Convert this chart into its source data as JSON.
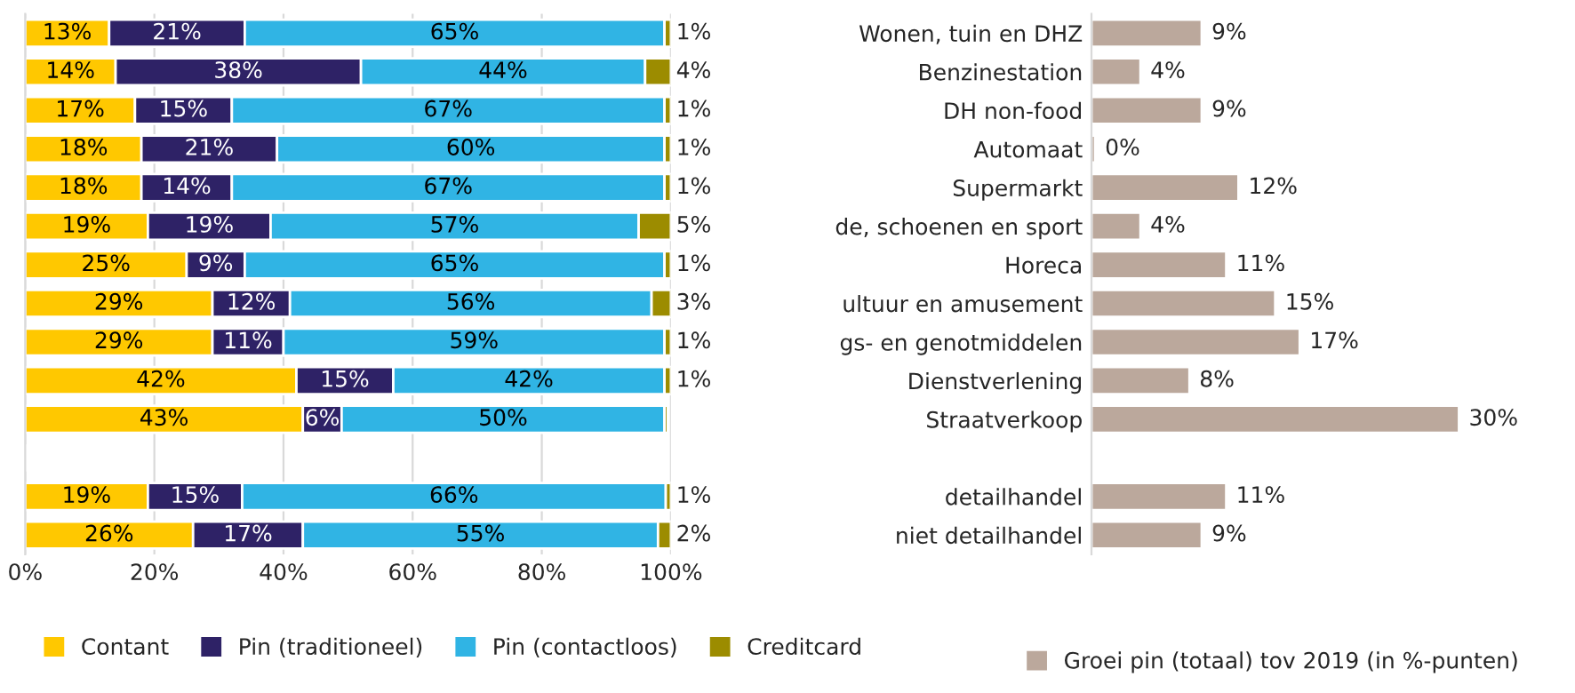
{
  "chart_data": [
    {
      "type": "bar",
      "orientation": "horizontal",
      "stacked": true,
      "categories": [
        null,
        null,
        null,
        null,
        null,
        null,
        null,
        null,
        null,
        null,
        null,
        null,
        null,
        null
      ],
      "series": [
        {
          "name": "Contant",
          "color": "#ffc800",
          "values": [
            13,
            14,
            17,
            18,
            18,
            19,
            25,
            29,
            29,
            42,
            43,
            null,
            19,
            26
          ],
          "value_labels": [
            "13%",
            "14%",
            "17%",
            "18%",
            "18%",
            "19%",
            "25%",
            "29%",
            "29%",
            "42%",
            "43%",
            null,
            "19%",
            "26%"
          ]
        },
        {
          "name": "Pin (traditioneel)",
          "color": "#2e2266",
          "values": [
            21,
            38,
            15,
            21,
            14,
            19,
            9,
            12,
            11,
            15,
            6,
            null,
            14.6,
            17
          ],
          "value_labels": [
            "21%",
            "38%",
            "15%",
            "21%",
            "14%",
            "19%",
            "9%",
            "12%",
            "11%",
            "15%",
            "6%",
            null,
            "15%",
            "17%"
          ]
        },
        {
          "name": "Pin (contactloos)",
          "color": "#30b4e4",
          "values": [
            65,
            44,
            67,
            60,
            67,
            57,
            65,
            56,
            59,
            42,
            50,
            null,
            65.6,
            55
          ],
          "value_labels": [
            "65%",
            "44%",
            "67%",
            "60%",
            "67%",
            "57%",
            "65%",
            "56%",
            "59%",
            "42%",
            "50%",
            null,
            "66%",
            "55%"
          ]
        },
        {
          "name": "Creditcard",
          "color": "#9c8c00",
          "values": [
            1,
            4,
            1,
            1,
            1,
            5,
            1,
            3,
            1,
            1,
            0.5,
            null,
            0.8,
            2
          ],
          "value_labels": [
            "1%",
            "4%",
            "1%",
            "1%",
            "1%",
            "5%",
            "1%",
            "3%",
            "1%",
            "1%",
            null,
            null,
            "1%",
            "2%"
          ]
        }
      ],
      "xlim": [
        0,
        100
      ],
      "xticks": [
        {
          "value": 0,
          "label": "0%"
        },
        {
          "value": 20,
          "label": "20%"
        },
        {
          "value": 40,
          "label": "40%"
        },
        {
          "value": 60,
          "label": "60%"
        },
        {
          "value": 80,
          "label": "80%"
        },
        {
          "value": 100,
          "label": "100%"
        }
      ],
      "tick_labels": "x",
      "grid": "x",
      "legend": "bottom"
    },
    {
      "type": "bar",
      "orientation": "horizontal",
      "categories": [
        "Wonen, tuin en DHZ",
        "Benzinestation",
        "DH non-food",
        "Automaat",
        "Supermarkt",
        "de, schoenen en sport",
        "Horeca",
        "ultuur en amusement",
        "gs- en genotmiddelen",
        "Dienstverlening",
        "Straatverkoop",
        null,
        "detailhandel",
        "niet detailhandel"
      ],
      "series": [
        {
          "name": "Groei pin (totaal) tov 2019 (in %-punten)",
          "color": "#bba89c",
          "values": [
            9,
            4,
            9,
            0.3,
            12,
            4,
            11,
            15,
            17,
            8,
            30,
            null,
            11,
            9
          ],
          "value_labels": [
            "9%",
            "4%",
            "9%",
            "0%",
            "12%",
            "4%",
            "11%",
            "15%",
            "17%",
            "8%",
            "30%",
            null,
            "11%",
            "9%"
          ]
        }
      ],
      "tick_labels": "y",
      "grid": false,
      "legend": "bottom"
    }
  ]
}
